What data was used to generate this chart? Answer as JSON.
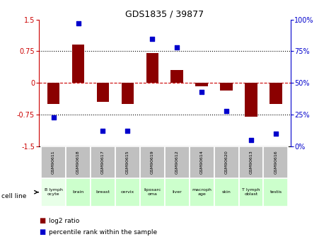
{
  "title": "GDS1835 / 39877",
  "samples": [
    "GSM90611",
    "GSM90618",
    "GSM90617",
    "GSM90615",
    "GSM90619",
    "GSM90612",
    "GSM90614",
    "GSM90620",
    "GSM90613",
    "GSM90616"
  ],
  "cell_lines": [
    "B lymph\nocyte",
    "brain",
    "breast",
    "cervix",
    "liposarc\noma",
    "liver",
    "macroph\nage",
    "skin",
    "T lymph\noblast",
    "testis"
  ],
  "log2_ratio": [
    -0.5,
    0.9,
    -0.45,
    -0.5,
    0.7,
    0.3,
    -0.08,
    -0.18,
    -0.8,
    -0.5
  ],
  "percentile_rank": [
    23,
    97,
    12,
    12,
    85,
    78,
    43,
    28,
    5,
    10
  ],
  "bar_color": "#8B0000",
  "dot_color": "#0000CC",
  "ylim_left": [
    -1.5,
    1.5
  ],
  "ylim_right": [
    0,
    100
  ],
  "yticks_left": [
    -1.5,
    -0.75,
    0,
    0.75,
    1.5
  ],
  "yticks_right": [
    0,
    25,
    50,
    75,
    100
  ],
  "legend_label_red": "log2 ratio",
  "legend_label_blue": "percentile rank within the sample",
  "cell_line_label": "cell line",
  "bar_width": 0.5,
  "gsm_row_color": "#c0c0c0",
  "cell_line_color_light": "#ccffcc",
  "cell_line_color_lighter": "#e8ffe8"
}
